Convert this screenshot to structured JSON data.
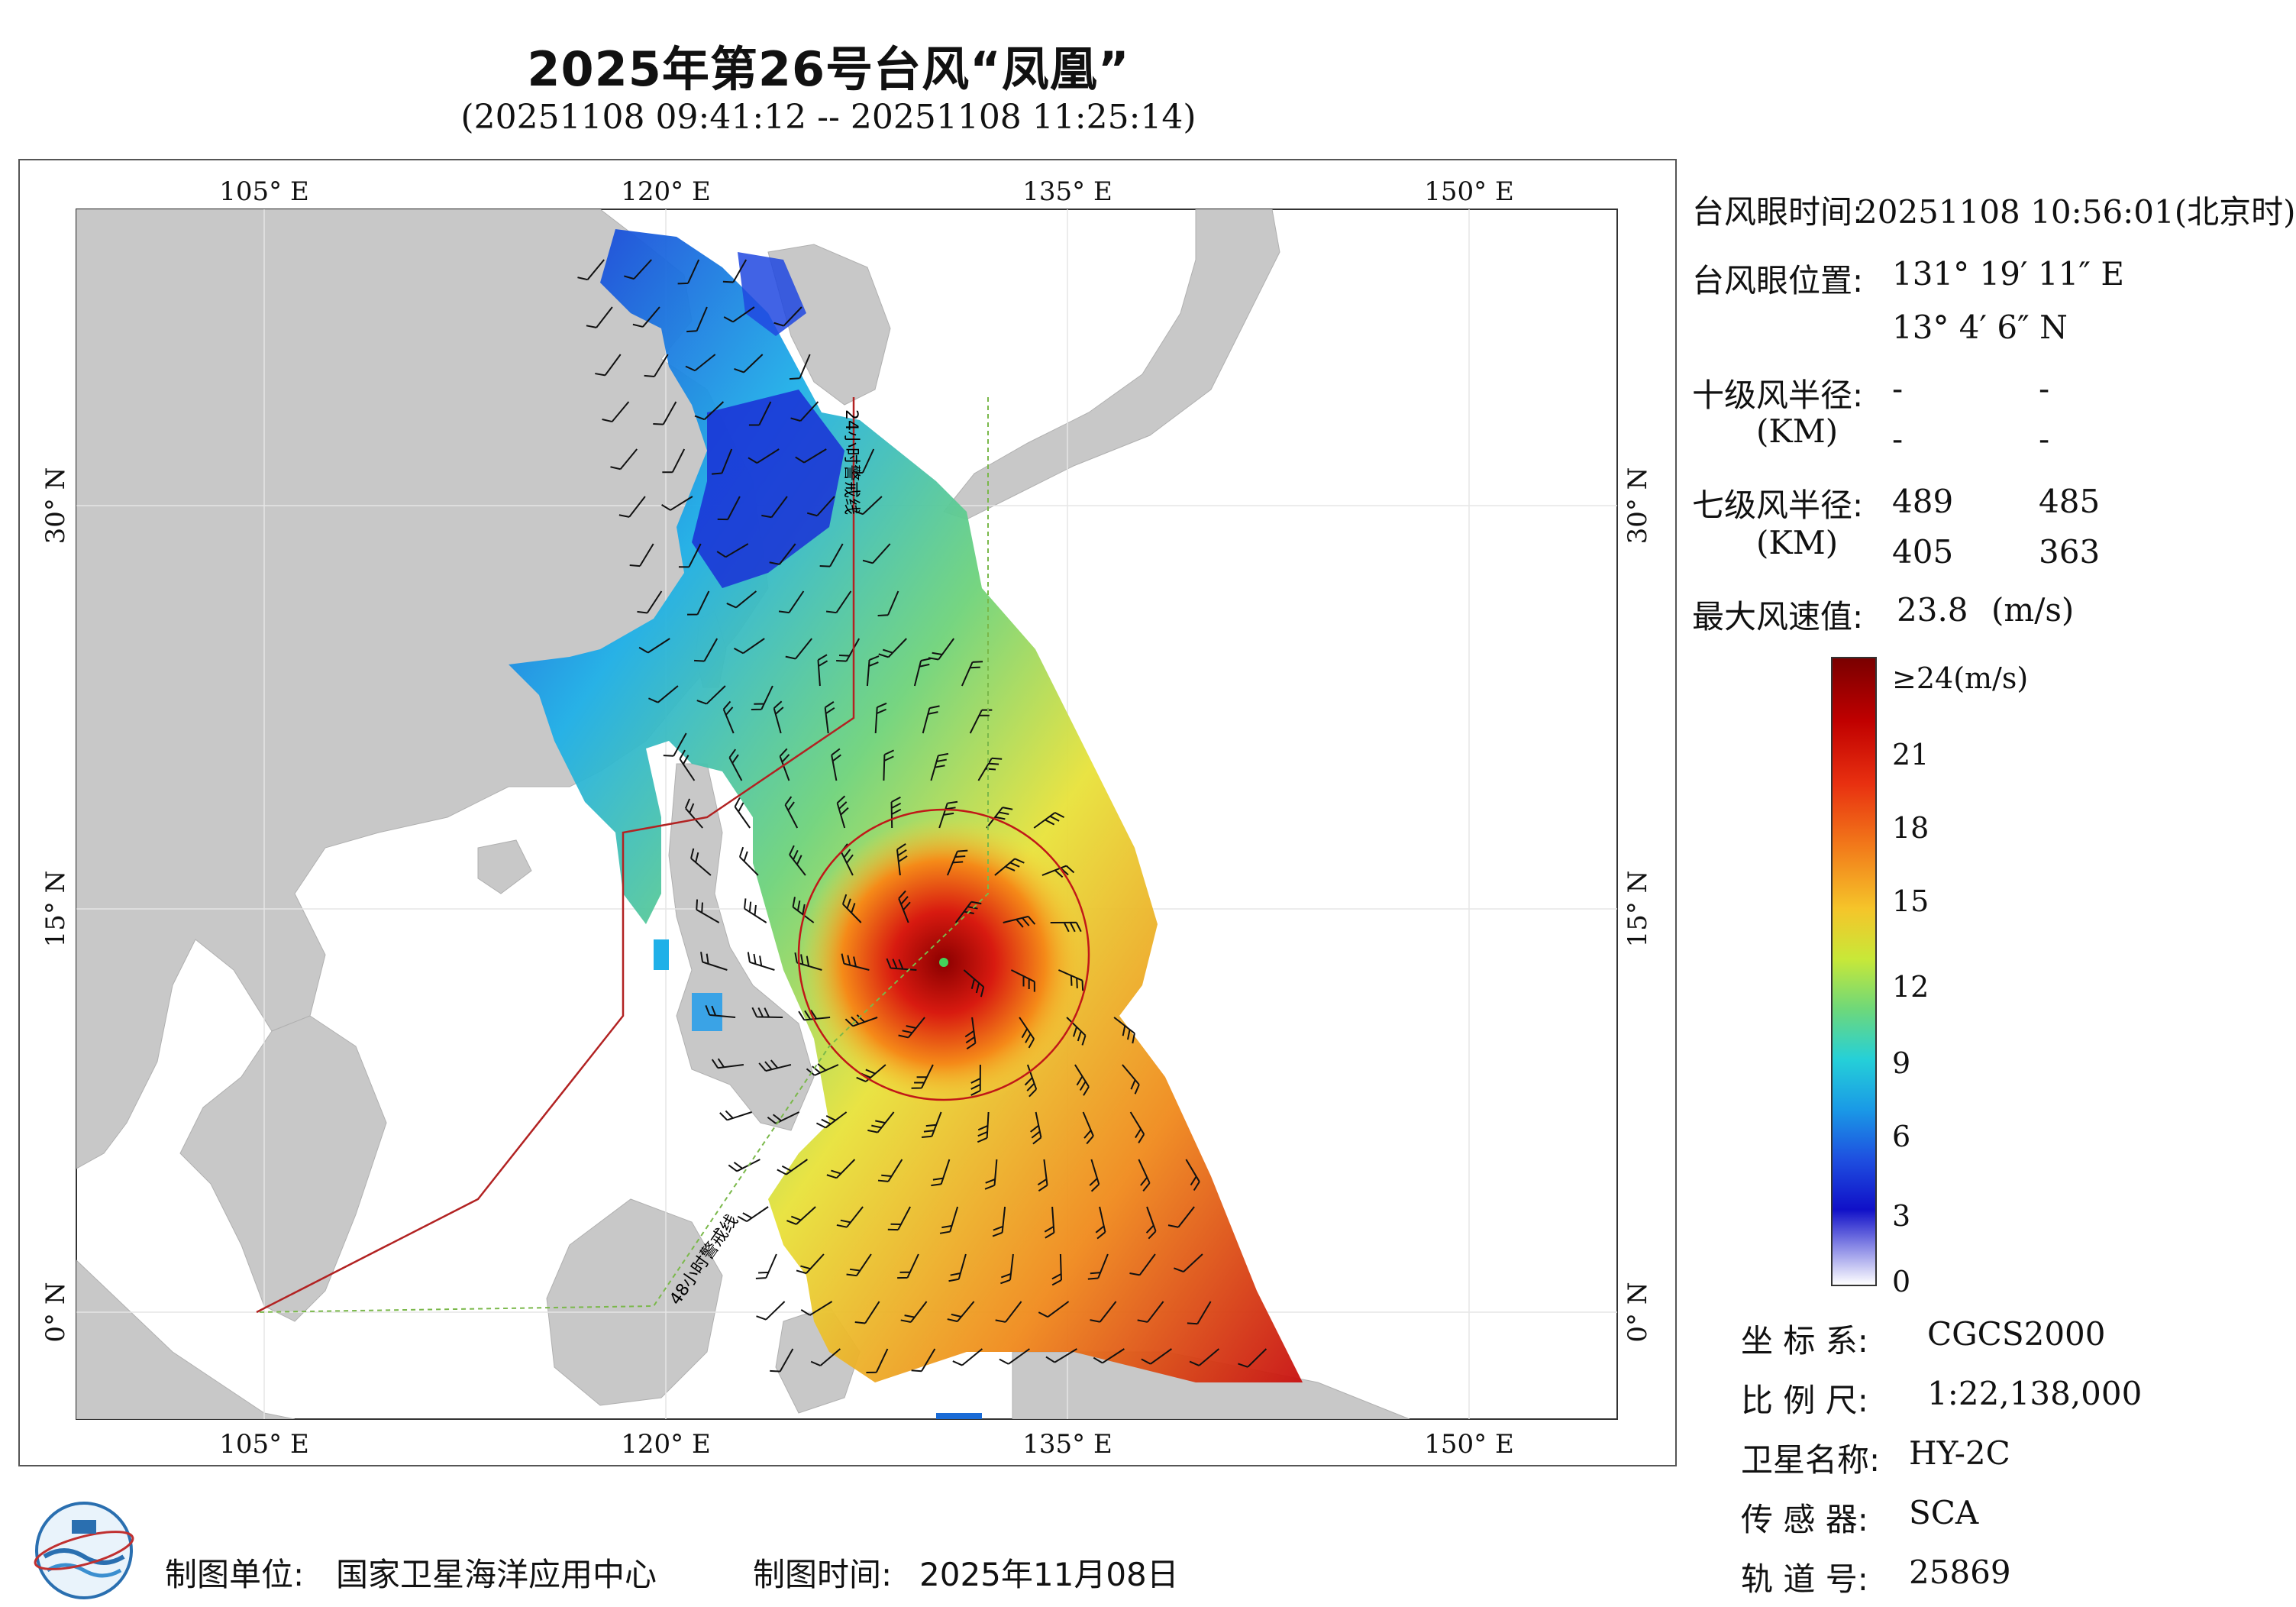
{
  "header": {
    "title": "2025年第26号台风“凤凰”",
    "subtitle": "(20251108 09:41:12 -- 20251108 11:25:14)"
  },
  "map": {
    "lon_ticks": [
      "105° E",
      "120° E",
      "135° E",
      "150° E"
    ],
    "lat_ticks": [
      "30° N",
      "15° N",
      "0° N"
    ],
    "line_24h": "24小时警戒线",
    "line_48h": "48小时警戒线",
    "colors": {
      "land": "#c8c8c8",
      "sea": "#ffffff",
      "warn_24h": "#b22222",
      "warn_48h": "#7ab84a"
    }
  },
  "info_panel": {
    "eye_time_label": "台风眼时间:",
    "eye_time_value": "20251108 10:56:01(北京时)",
    "eye_pos_label": "台风眼位置:",
    "eye_lon": "131° 19′ 11″ E",
    "eye_lat": "13° 4′ 6″ N",
    "r10_label": "十级风半径:",
    "r10_unit": "(KM)",
    "r10_values": [
      "-",
      "-",
      "-",
      "-"
    ],
    "r7_label": "七级风半径:",
    "r7_unit": "(KM)",
    "r7_values": [
      "489",
      "485",
      "405",
      "363"
    ],
    "max_wind_label": "最大风速值:",
    "max_wind_value": "23.8",
    "max_wind_unit": "(m/s)"
  },
  "colorbar": {
    "labels": [
      "≥24(m/s)",
      "21",
      "18",
      "15",
      "12",
      "9",
      "6",
      "3",
      "0"
    ]
  },
  "meta": {
    "crs_label": "坐 标 系:",
    "crs_value": "CGCS2000",
    "scale_label": "比 例 尺:",
    "scale_value": "1:22,138,000",
    "sat_label": "卫星名称:",
    "sat_value": "HY-2C",
    "sensor_label": "传 感 器:",
    "sensor_value": "SCA",
    "orbit_label": "轨 道 号:",
    "orbit_value": "25869"
  },
  "footer": {
    "producer_label": "制图单位:",
    "producer_value": "国家卫星海洋应用中心",
    "date_label": "制图时间:",
    "date_value": "2025年11月08日"
  }
}
